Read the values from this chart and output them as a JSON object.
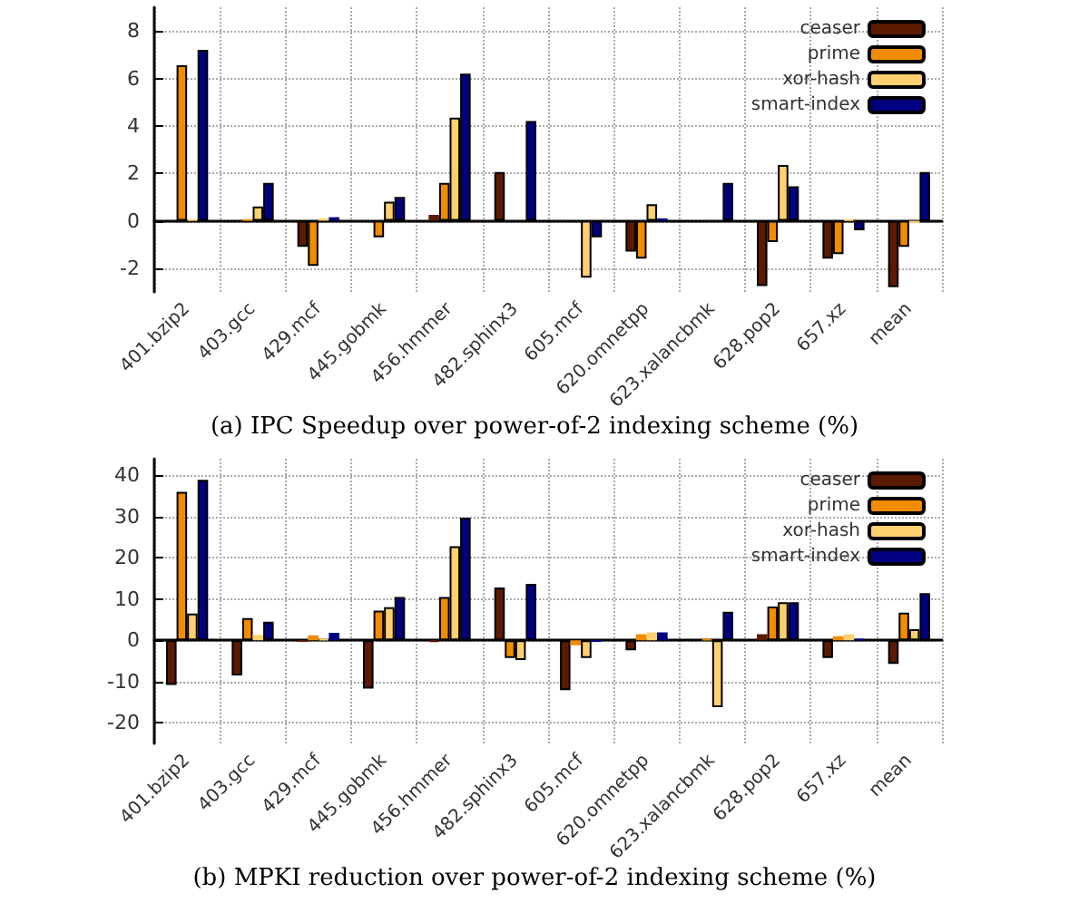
{
  "chart_data": [
    {
      "type": "bar",
      "annotations": [
        "(a) IPC Speedup over power-of-2 indexing scheme (%)"
      ],
      "categories": [
        "401.bzip2",
        "403.gcc",
        "429.mcf",
        "445.gobmk",
        "456.hmmer",
        "482.sphinx3",
        "605.mcf",
        "620.omnetpp",
        "623.xalancbmk",
        "628.pop2",
        "657.xz",
        "mean"
      ],
      "series": [
        {
          "name": "ceaser",
          "color": "#5c1a00",
          "values": [
            null,
            null,
            -1.1,
            null,
            0.25,
            2.05,
            null,
            -1.3,
            null,
            -2.75,
            -1.6,
            -2.8
          ]
        },
        {
          "name": "prime",
          "color": "#f08c00",
          "values": [
            6.55,
            0.05,
            -1.9,
            -0.7,
            1.6,
            null,
            null,
            -1.6,
            null,
            -0.9,
            -1.4,
            -1.1
          ]
        },
        {
          "name": "xor-hash",
          "color": "#ffd070",
          "values": [
            0.05,
            0.6,
            0.1,
            0.8,
            4.35,
            null,
            -2.4,
            0.7,
            null,
            2.35,
            0.05,
            -0.1
          ]
        },
        {
          "name": "smart-index",
          "color": "#000080",
          "values": [
            7.2,
            1.6,
            0.15,
            1.0,
            6.2,
            4.2,
            -0.7,
            0.1,
            1.6,
            1.45,
            -0.4,
            2.05
          ]
        }
      ],
      "ylim": [
        -3,
        9
      ],
      "yticks": [
        -2,
        0,
        2,
        4,
        6,
        8
      ],
      "grid": true,
      "legend": "top right"
    },
    {
      "type": "bar",
      "annotations": [
        "(b) MPKI reduction over power-of-2 indexing scheme (%)"
      ],
      "categories": [
        "401.bzip2",
        "403.gcc",
        "429.mcf",
        "445.gobmk",
        "456.hmmer",
        "482.sphinx3",
        "605.mcf",
        "620.omnetpp",
        "623.xalancbmk",
        "628.pop2",
        "657.xz",
        "mean"
      ],
      "series": [
        {
          "name": "ceaser",
          "color": "#5c1a00",
          "values": [
            -10.8,
            -8.5,
            -0.3,
            -11.7,
            -0.4,
            12.8,
            -12.1,
            -2.4,
            null,
            1.5,
            -4.3,
            -5.7
          ]
        },
        {
          "name": "prime",
          "color": "#f08c00",
          "values": [
            36,
            5.4,
            1.2,
            7.2,
            10.5,
            -4.3,
            -1.2,
            1.5,
            0.3,
            8.2,
            1.0,
            6.7
          ]
        },
        {
          "name": "xor-hash",
          "color": "#ffd070",
          "values": [
            6.5,
            1.3,
            0.3,
            8.0,
            22.8,
            -4.8,
            -4.3,
            1.9,
            -16.2,
            9.2,
            1.5,
            2.7
          ]
        },
        {
          "name": "smart-index",
          "color": "#000080",
          "values": [
            38.9,
            4.5,
            1.8,
            10.5,
            29.7,
            13.7,
            -0.3,
            1.9,
            6.9,
            9.2,
            0.3,
            11.4
          ]
        }
      ],
      "ylim": [
        -25,
        44
      ],
      "yticks": [
        -20,
        -10,
        0,
        10,
        20,
        30,
        40
      ],
      "grid": true,
      "legend": "top right"
    }
  ]
}
